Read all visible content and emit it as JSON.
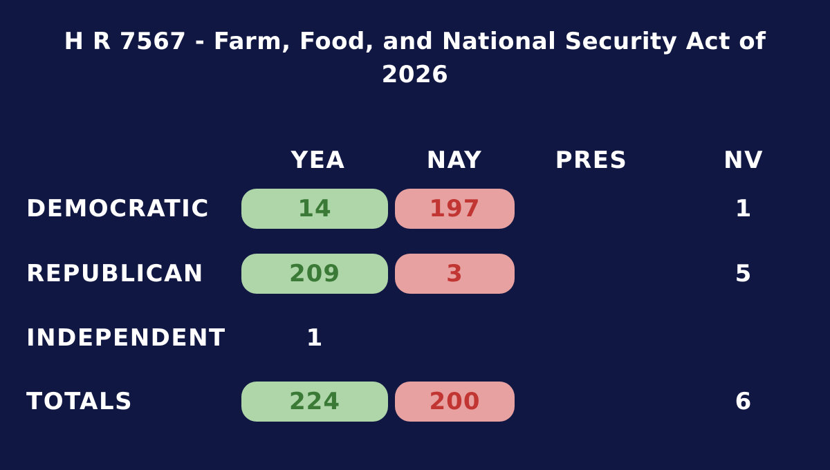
{
  "title": "H R 7567 - Farm, Food, and National Security Act of 2026",
  "columns": {
    "yea": "YEA",
    "nay": "NAY",
    "pres": "PRES",
    "nv": "NV"
  },
  "rows": [
    {
      "party": "DEMOCRATIC",
      "yea": "14",
      "nay": "197",
      "pres": "",
      "nv": "1"
    },
    {
      "party": "REPUBLICAN",
      "yea": "209",
      "nay": "3",
      "pres": "",
      "nv": "5"
    },
    {
      "party": "INDEPENDENT",
      "yea": "1",
      "nay": "",
      "pres": "",
      "nv": ""
    },
    {
      "party": "TOTALS",
      "yea": "224",
      "nay": "200",
      "pres": "",
      "nv": "6"
    }
  ],
  "colors": {
    "background": "#111743",
    "yea_fill": "#aed6a8",
    "yea_text": "#3a7a36",
    "nay_fill": "#e8a1a1",
    "nay_text": "#c13533"
  }
}
